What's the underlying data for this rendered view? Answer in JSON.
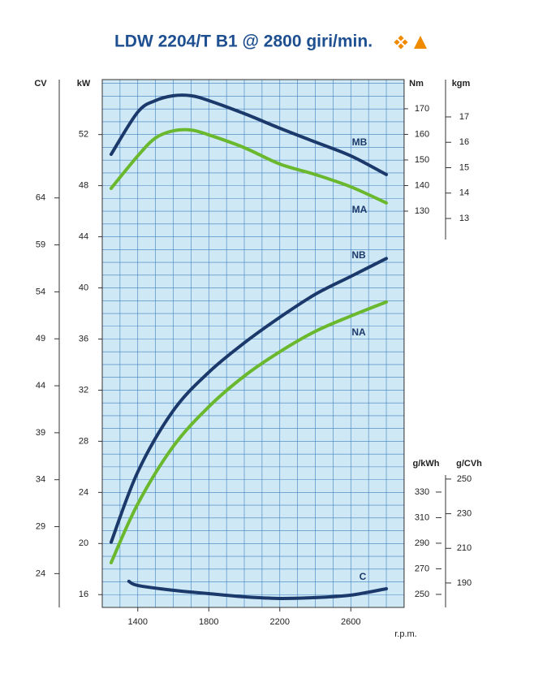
{
  "chart_data": {
    "type": "line",
    "title": "LDW 2204/T B1 @ 2800 giri/min.",
    "x_label": "r.p.m.",
    "xlim": [
      1200,
      2900
    ],
    "xticks": [
      1400,
      1800,
      2200,
      2600
    ],
    "grid": {
      "x_step": 100,
      "y_step": 1
    },
    "background": "#cfe8f5",
    "grid_color": "#3f7fbf",
    "axes": [
      {
        "label": "CV",
        "lim": [
          20.4,
          76.6
        ],
        "ticks": [
          24,
          29,
          34,
          39,
          44,
          49,
          54,
          59,
          64
        ]
      },
      {
        "label": "kW",
        "lim": [
          15,
          56.3
        ],
        "ticks": [
          16,
          20,
          24,
          28,
          32,
          36,
          40,
          44,
          48,
          52
        ]
      },
      {
        "label": "Nm",
        "lim": [
          118.9,
          181.4
        ],
        "ticks": [
          130,
          140,
          150,
          160,
          170
        ]
      },
      {
        "label": "kgm",
        "lim": [
          12.17,
          18.47
        ],
        "ticks": [
          13,
          14,
          15,
          16,
          17
        ]
      },
      {
        "label": "g/kWh",
        "lim": [
          239.8,
          343.3
        ],
        "ticks": [
          250,
          270,
          290,
          310,
          330
        ]
      },
      {
        "label": "g/CVh",
        "lim": [
          175.9,
          252.3
        ],
        "ticks": [
          190,
          210,
          230,
          250
        ]
      }
    ],
    "series": [
      {
        "name": "MB",
        "color": "#1b3a6b",
        "axis": "Nm",
        "x": [
          1250,
          1400,
          1500,
          1600,
          1700,
          1800,
          2000,
          2200,
          2400,
          2600,
          2800
        ],
        "values": [
          152.2,
          168.7,
          173.2,
          175.1,
          175.1,
          173.2,
          168.1,
          162.4,
          157,
          151.6,
          144.3
        ]
      },
      {
        "name": "MA",
        "color": "#6ab82e",
        "axis": "Nm",
        "x": [
          1250,
          1400,
          1500,
          1600,
          1700,
          1800,
          2000,
          2200,
          2400,
          2600,
          2800
        ],
        "values": [
          138.9,
          151.6,
          158.6,
          161.4,
          161.7,
          159.8,
          154.8,
          148.4,
          144.3,
          139.5,
          133.2
        ]
      },
      {
        "name": "NB",
        "color": "#1b3a6b",
        "axis": "kW",
        "x": [
          1250,
          1400,
          1600,
          1800,
          2000,
          2200,
          2400,
          2600,
          2800
        ],
        "values": [
          20.1,
          25.6,
          30.4,
          33.4,
          35.7,
          37.7,
          39.5,
          40.9,
          42.3
        ]
      },
      {
        "name": "NA",
        "color": "#6ab82e",
        "axis": "kW",
        "x": [
          1250,
          1400,
          1600,
          1800,
          2000,
          2200,
          2400,
          2600,
          2800
        ],
        "values": [
          18.5,
          23.1,
          27.6,
          30.7,
          33.1,
          35.0,
          36.6,
          37.8,
          38.9
        ]
      },
      {
        "name": "C",
        "color": "#1b3a6b",
        "axis": "g/kWh",
        "x": [
          1350,
          1400,
          1600,
          1800,
          2000,
          2200,
          2400,
          2600,
          2800
        ],
        "values": [
          260.2,
          257,
          253.2,
          250.6,
          248.1,
          246.8,
          247.5,
          249.4,
          254.4
        ]
      }
    ]
  }
}
